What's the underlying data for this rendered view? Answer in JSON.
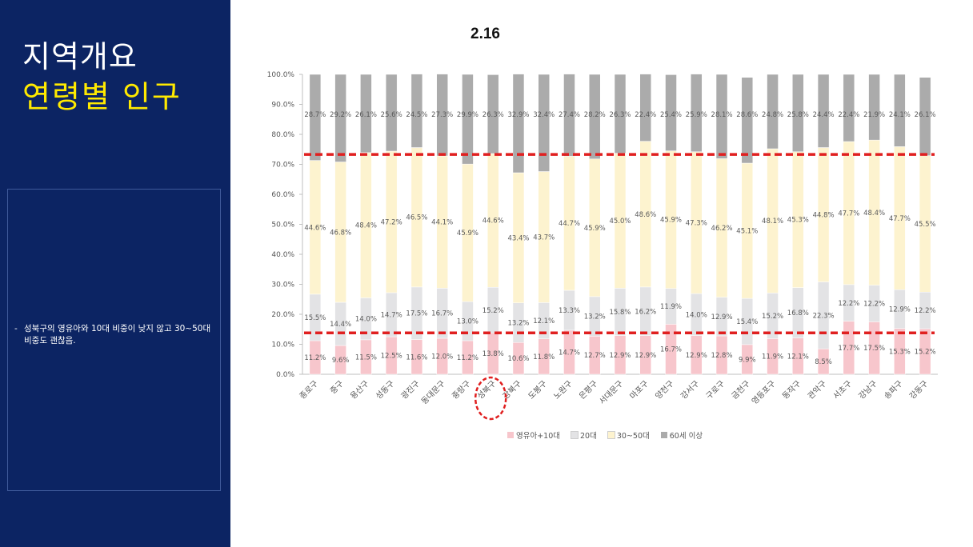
{
  "slide": {
    "title_line1": "지역개요",
    "title_line2": "연령별 인구",
    "page_number": "2.16",
    "note_dash": "-",
    "note_text": "성북구의 영유아와 10대 비중이 낮지 않고 30~50대 비중도 괜찮음."
  },
  "chart_data": {
    "type": "bar",
    "stacked": true,
    "percent_stacked": true,
    "categories": [
      "종로구",
      "중구",
      "용산구",
      "성동구",
      "광진구",
      "동대문구",
      "중랑구",
      "성북구",
      "강북구",
      "도봉구",
      "노원구",
      "은평구",
      "서대문구",
      "마포구",
      "양천구",
      "강서구",
      "구로구",
      "금천구",
      "영등포구",
      "동작구",
      "관악구",
      "서초구",
      "강남구",
      "송파구",
      "강동구"
    ],
    "series": [
      {
        "name": "영유아+10대",
        "color": "#f7c6cc",
        "values": [
          11.2,
          9.6,
          11.5,
          12.5,
          11.6,
          12.0,
          11.2,
          13.8,
          10.6,
          11.8,
          14.7,
          12.7,
          12.9,
          12.9,
          16.7,
          12.9,
          12.8,
          9.9,
          11.9,
          12.1,
          8.5,
          17.7,
          17.5,
          15.3,
          15.2
        ]
      },
      {
        "name": "20대",
        "color": "#e3e3e5",
        "values": [
          15.5,
          14.4,
          14.0,
          14.7,
          17.5,
          16.7,
          13.0,
          15.2,
          13.2,
          12.1,
          13.3,
          13.2,
          15.8,
          16.2,
          11.9,
          14.0,
          12.9,
          15.4,
          15.2,
          16.8,
          22.3,
          12.2,
          12.2,
          12.9,
          12.2
        ]
      },
      {
        "name": "30~50대",
        "color": "#fdf3cf",
        "values": [
          44.6,
          46.8,
          48.4,
          47.2,
          46.5,
          44.1,
          45.9,
          44.6,
          43.4,
          43.7,
          44.7,
          45.9,
          45.0,
          48.6,
          45.9,
          47.3,
          46.2,
          45.1,
          48.1,
          45.3,
          44.8,
          47.7,
          48.4,
          47.7,
          45.5
        ]
      },
      {
        "name": "60세 이상",
        "color": "#ababab",
        "values": [
          28.7,
          29.2,
          26.1,
          25.6,
          24.5,
          27.3,
          29.9,
          26.3,
          32.9,
          32.4,
          27.4,
          28.2,
          26.3,
          22.4,
          25.4,
          25.9,
          28.1,
          28.6,
          24.8,
          25.8,
          24.4,
          22.4,
          21.9,
          24.1,
          26.1
        ]
      }
    ],
    "y_ticks": [
      "0.0%",
      "10.0%",
      "20.0%",
      "30.0%",
      "40.0%",
      "50.0%",
      "60.0%",
      "70.0%",
      "80.0%",
      "90.0%",
      "100.0%"
    ],
    "ylim": [
      0,
      100
    ],
    "grid": false,
    "legend_position": "bottom",
    "annotations": {
      "reference_lines_pct": [
        73.3,
        13.8
      ],
      "reference_line_color": "#e02020",
      "highlight_category": "성북구"
    }
  }
}
